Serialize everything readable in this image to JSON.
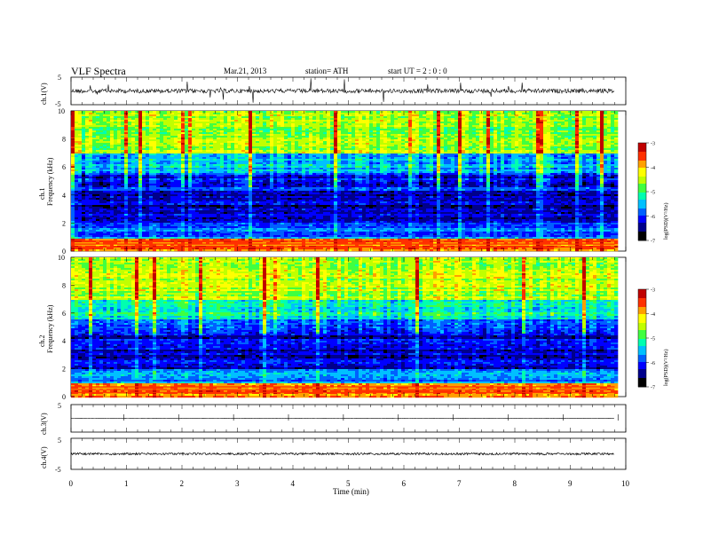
{
  "header": {
    "title": "VLF Spectra",
    "date": "Mar.21, 2013",
    "station": "station= ATH",
    "start": "start UT =   2 : 0 : 0"
  },
  "chart_data": [
    {
      "type": "line",
      "ylabel": "ch.1(V)",
      "ylim": [
        -5,
        5
      ],
      "yticks": [
        "5",
        "-5"
      ],
      "xlim": [
        0,
        10
      ],
      "description_values": {
        "baseline": 0.0,
        "noise_amplitude": 1.2
      }
    },
    {
      "type": "heatmap",
      "ylabel": "ch.1\nFrequency (kHz)",
      "ylabel_lines": [
        "ch.1",
        "Frequency (kHz)"
      ],
      "ylim": [
        0,
        10
      ],
      "yticks": [
        "0",
        "2",
        "4",
        "6",
        "8",
        "10"
      ],
      "xlim": [
        0,
        9.8
      ],
      "colorbar": {
        "label": "log(PSD)(V²/Hz)",
        "ticks": [
          "-3",
          "-4",
          "-5",
          "-6",
          "-7"
        ],
        "range": [
          -7,
          -3
        ]
      },
      "bands": [
        {
          "from": 0,
          "to": 0.9,
          "level": -3.6
        },
        {
          "from": 0.9,
          "to": 2.0,
          "level": -5.8
        },
        {
          "from": 2.0,
          "to": 4.3,
          "level": -6.4
        },
        {
          "from": 4.3,
          "to": 5.6,
          "level": -6.1
        },
        {
          "from": 5.6,
          "to": 7.0,
          "level": -5.4
        },
        {
          "from": 7.0,
          "to": 10.0,
          "level": -4.6
        }
      ]
    },
    {
      "type": "heatmap",
      "ylabel": "ch.2\nFrequency (kHz)",
      "ylabel_lines": [
        "ch.2",
        "Frequency (kHz)"
      ],
      "ylim": [
        0,
        10
      ],
      "yticks": [
        "0",
        "2",
        "4",
        "6",
        "8",
        "10"
      ],
      "xlim": [
        0,
        9.8
      ],
      "colorbar": {
        "label": "log(PSD)(V²/Hz)",
        "ticks": [
          "-3",
          "-4",
          "-5",
          "-6",
          "-7"
        ],
        "range": [
          -7,
          -3
        ]
      },
      "bands": [
        {
          "from": 0,
          "to": 0.9,
          "level": -3.7
        },
        {
          "from": 0.9,
          "to": 2.0,
          "level": -5.7
        },
        {
          "from": 2.0,
          "to": 4.6,
          "level": -6.3
        },
        {
          "from": 4.6,
          "to": 5.6,
          "level": -6.0
        },
        {
          "from": 5.6,
          "to": 7.0,
          "level": -5.3
        },
        {
          "from": 7.0,
          "to": 10.0,
          "level": -4.5
        }
      ]
    },
    {
      "type": "line",
      "ylabel": "ch.3(V)",
      "ylim": [
        -5,
        5
      ],
      "yticks": [
        "5",
        "-5"
      ],
      "xlim": [
        0,
        10
      ],
      "description_values": {
        "baseline": 0.0,
        "noise_amplitude": 0.05
      }
    },
    {
      "type": "line",
      "ylabel": "ch.4(V)",
      "ylim": [
        -5,
        5
      ],
      "yticks": [
        "5",
        "-5"
      ],
      "xlim": [
        0,
        10
      ],
      "description_values": {
        "baseline": 0.0,
        "noise_amplitude": 0.3
      }
    }
  ],
  "xaxis": {
    "label": "Time  (min)",
    "ticks": [
      "0",
      "1",
      "2",
      "3",
      "4",
      "5",
      "6",
      "7",
      "8",
      "9",
      "10"
    ],
    "range": [
      0,
      10
    ]
  },
  "colors": {
    "scale": [
      "#000000",
      "#00008b",
      "#0000ff",
      "#0060ff",
      "#00c0ff",
      "#00ffb0",
      "#40ff40",
      "#c0ff00",
      "#ffff00",
      "#ffa000",
      "#ff3000",
      "#c00000",
      "#ffffff"
    ]
  }
}
